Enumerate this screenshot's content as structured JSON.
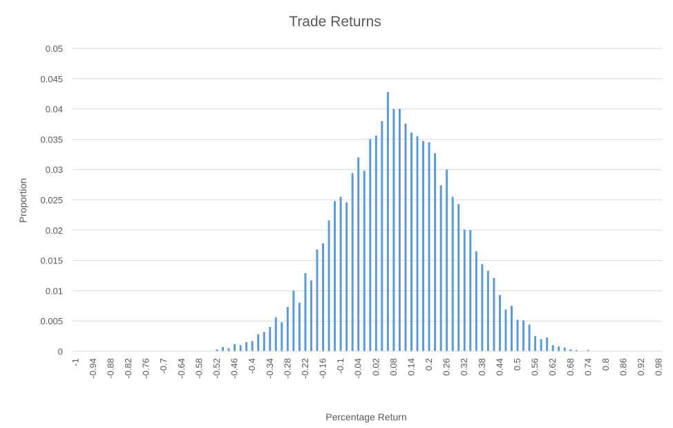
{
  "chart_data": {
    "type": "bar",
    "title": "Trade Returns",
    "xlabel": "Percentage Return",
    "ylabel": "Proportion",
    "ylim": [
      0,
      0.05
    ],
    "yticks": [
      "0",
      "0.005",
      "0.01",
      "0.015",
      "0.02",
      "0.025",
      "0.03",
      "0.035",
      "0.04",
      "0.045",
      "0.05"
    ],
    "ytick_values": [
      0,
      0.005,
      0.01,
      0.015,
      0.02,
      0.025,
      0.03,
      0.035,
      0.04,
      0.045,
      0.05
    ],
    "grid": "horizontal",
    "bar_color": "#5b9bd5",
    "categories": [
      -1,
      -0.98,
      -0.96,
      -0.94,
      -0.92,
      -0.9,
      -0.88,
      -0.86,
      -0.84,
      -0.82,
      -0.8,
      -0.78,
      -0.76,
      -0.74,
      -0.72,
      -0.7,
      -0.68,
      -0.66,
      -0.64,
      -0.62,
      -0.6,
      -0.58,
      -0.56,
      -0.54,
      -0.52,
      -0.5,
      -0.48,
      -0.46,
      -0.44,
      -0.42,
      -0.4,
      -0.38,
      -0.36,
      -0.34,
      -0.32,
      -0.3,
      -0.28,
      -0.26,
      -0.24,
      -0.22,
      -0.2,
      -0.18,
      -0.16,
      -0.14,
      -0.12,
      -0.1,
      -0.08,
      -0.06,
      -0.04,
      -0.02,
      0,
      0.02,
      0.04,
      0.06,
      0.08,
      0.1,
      0.12,
      0.14,
      0.16,
      0.18,
      0.2,
      0.22,
      0.24,
      0.26,
      0.28,
      0.3,
      0.32,
      0.34,
      0.36,
      0.38,
      0.4,
      0.42,
      0.44,
      0.46,
      0.48,
      0.5,
      0.52,
      0.54,
      0.56,
      0.58,
      0.6,
      0.62,
      0.64,
      0.66,
      0.68,
      0.7,
      0.72,
      0.74,
      0.76,
      0.78,
      0.8,
      0.82,
      0.84,
      0.86,
      0.88,
      0.9,
      0.92,
      0.94,
      0.96,
      0.98
    ],
    "xtick_labels": [
      "-1",
      "-0.94",
      "-0.88",
      "-0.82",
      "-0.76",
      "-0.7",
      "-0.64",
      "-0.58",
      "-0.52",
      "-0.46",
      "-0.4",
      "-0.34",
      "-0.28",
      "-0.22",
      "-0.16",
      "-0.1",
      "-0.04",
      "0.02",
      "0.08",
      "0.14",
      "0.2",
      "0.26",
      "0.32",
      "0.38",
      "0.44",
      "0.5",
      "0.56",
      "0.62",
      "0.68",
      "0.74",
      "0.8",
      "0.86",
      "0.92",
      "0.98"
    ],
    "values": [
      0,
      0,
      0,
      0,
      0,
      0,
      0,
      0,
      0,
      0,
      0,
      0,
      0,
      0,
      0,
      0,
      0,
      0,
      0,
      0,
      0,
      0,
      0,
      0,
      0.0003,
      0.0007,
      0.0005,
      0.0012,
      0.001,
      0.0015,
      0.0017,
      0.0028,
      0.0032,
      0.004,
      0.0056,
      0.0048,
      0.0073,
      0.01,
      0.008,
      0.0129,
      0.0117,
      0.0168,
      0.0178,
      0.0216,
      0.0248,
      0.0255,
      0.0246,
      0.0294,
      0.032,
      0.0298,
      0.035,
      0.0356,
      0.038,
      0.0428,
      0.04,
      0.04,
      0.0376,
      0.0361,
      0.0355,
      0.0347,
      0.0345,
      0.0327,
      0.0274,
      0.03,
      0.0255,
      0.0243,
      0.0201,
      0.02,
      0.0165,
      0.0144,
      0.0133,
      0.0121,
      0.0093,
      0.0069,
      0.0075,
      0.0052,
      0.0051,
      0.0044,
      0.0025,
      0.002,
      0.0023,
      0.001,
      0.0008,
      0.0006,
      0.0003,
      0.0002,
      0,
      0.0002,
      0,
      0,
      0,
      0,
      0,
      0,
      0,
      0,
      0,
      0,
      0,
      0
    ]
  }
}
